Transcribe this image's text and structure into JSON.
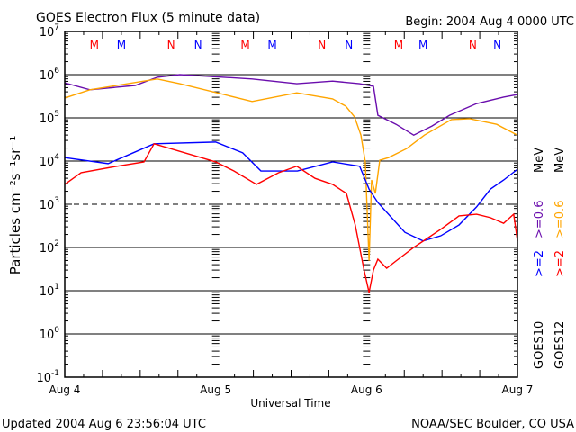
{
  "chart_data": {
    "type": "line",
    "title": "GOES Electron Flux (5 minute data)",
    "begin_label": "Begin: 2004 Aug 4 0000 UTC",
    "xlabel": "Universal Time",
    "ylabel": "Particles cm⁻²s⁻¹sr⁻¹",
    "x_unit": "hours since 2004 Aug 4 0000 UTC",
    "xlim": [
      0,
      72
    ],
    "x_ticks": [
      {
        "value": 0,
        "label": "Aug 4"
      },
      {
        "value": 24,
        "label": "Aug 5"
      },
      {
        "value": 48,
        "label": "Aug 6"
      },
      {
        "value": 72,
        "label": "Aug 7"
      }
    ],
    "y_scale": "log",
    "ylim_log10": [
      -1,
      7
    ],
    "y_ticks_log10": [
      7,
      6,
      5,
      4,
      3,
      2,
      1,
      0,
      -1
    ],
    "threshold_log10": 3,
    "series": [
      {
        "name": "GOES10 >=0.6 MeV",
        "color": "#6a0dad",
        "points_log10": [
          [
            0,
            5.81
          ],
          [
            4,
            5.65
          ],
          [
            11.2,
            5.75
          ],
          [
            14.7,
            5.94
          ],
          [
            18.3,
            6.0
          ],
          [
            29.8,
            5.9
          ],
          [
            36.9,
            5.79
          ],
          [
            42.6,
            5.85
          ],
          [
            46.9,
            5.79
          ],
          [
            49.1,
            5.73
          ],
          [
            49.8,
            5.06
          ],
          [
            52.7,
            4.85
          ],
          [
            55.5,
            4.6
          ],
          [
            58.4,
            4.81
          ],
          [
            61.2,
            5.06
          ],
          [
            65.5,
            5.33
          ],
          [
            69.8,
            5.48
          ],
          [
            72,
            5.54
          ]
        ]
      },
      {
        "name": "GOES12 >=0.6 MeV",
        "color": "#ffa500",
        "points_log10": [
          [
            0,
            5.46
          ],
          [
            4,
            5.65
          ],
          [
            14.7,
            5.9
          ],
          [
            18.3,
            5.79
          ],
          [
            29.8,
            5.38
          ],
          [
            36.9,
            5.58
          ],
          [
            42.6,
            5.44
          ],
          [
            44.7,
            5.27
          ],
          [
            46.1,
            5.02
          ],
          [
            47.1,
            4.6
          ],
          [
            47.8,
            3.98
          ],
          [
            48.4,
            1.69
          ],
          [
            48.8,
            3.56
          ],
          [
            49.4,
            3.25
          ],
          [
            50.1,
            4.02
          ],
          [
            51.5,
            4.08
          ],
          [
            54.4,
            4.29
          ],
          [
            57.2,
            4.6
          ],
          [
            61.5,
            4.96
          ],
          [
            64.4,
            4.98
          ],
          [
            68.7,
            4.85
          ],
          [
            72,
            4.6
          ]
        ]
      },
      {
        "name": "GOES10 >=2 MeV",
        "color": "#0000ff",
        "points_log10": [
          [
            0,
            4.08
          ],
          [
            6.9,
            3.94
          ],
          [
            14.2,
            4.4
          ],
          [
            24,
            4.44
          ],
          [
            28.3,
            4.19
          ],
          [
            31.2,
            3.77
          ],
          [
            37,
            3.77
          ],
          [
            42.6,
            3.98
          ],
          [
            46.9,
            3.88
          ],
          [
            48.4,
            3.35
          ],
          [
            49.8,
            3.04
          ],
          [
            54.1,
            2.35
          ],
          [
            57,
            2.15
          ],
          [
            59.8,
            2.27
          ],
          [
            62.7,
            2.52
          ],
          [
            65.5,
            2.94
          ],
          [
            67.7,
            3.35
          ],
          [
            69.8,
            3.56
          ],
          [
            72,
            3.81
          ]
        ]
      },
      {
        "name": "GOES12 >=2 MeV",
        "color": "#ff0000",
        "points_log10": [
          [
            0,
            3.46
          ],
          [
            2.6,
            3.73
          ],
          [
            8.3,
            3.88
          ],
          [
            12.6,
            3.98
          ],
          [
            14.2,
            4.4
          ],
          [
            24,
            3.98
          ],
          [
            26.9,
            3.77
          ],
          [
            30.5,
            3.46
          ],
          [
            34,
            3.73
          ],
          [
            36.9,
            3.88
          ],
          [
            39.8,
            3.6
          ],
          [
            42.6,
            3.46
          ],
          [
            44.8,
            3.25
          ],
          [
            46.2,
            2.52
          ],
          [
            47.6,
            1.48
          ],
          [
            48.4,
            0.96
          ],
          [
            49.1,
            1.48
          ],
          [
            49.8,
            1.73
          ],
          [
            51.2,
            1.52
          ],
          [
            52.7,
            1.69
          ],
          [
            55.5,
            2.0
          ],
          [
            59.8,
            2.42
          ],
          [
            62.7,
            2.73
          ],
          [
            65.5,
            2.77
          ],
          [
            67.7,
            2.69
          ],
          [
            69.8,
            2.56
          ],
          [
            71.4,
            2.77
          ],
          [
            72,
            2.15
          ]
        ]
      }
    ],
    "markers": [
      {
        "label": "M",
        "hour": 4.7,
        "color": "#ff0000"
      },
      {
        "label": "M",
        "hour": 9.0,
        "color": "#0000ff"
      },
      {
        "label": "N",
        "hour": 16.9,
        "color": "#ff0000"
      },
      {
        "label": "N",
        "hour": 21.2,
        "color": "#0000ff"
      },
      {
        "label": "M",
        "hour": 28.7,
        "color": "#ff0000"
      },
      {
        "label": "M",
        "hour": 33.0,
        "color": "#0000ff"
      },
      {
        "label": "N",
        "hour": 40.9,
        "color": "#ff0000"
      },
      {
        "label": "N",
        "hour": 45.2,
        "color": "#0000ff"
      },
      {
        "label": "M",
        "hour": 53.1,
        "color": "#ff0000"
      },
      {
        "label": "M",
        "hour": 57.0,
        "color": "#0000ff"
      },
      {
        "label": "N",
        "hour": 64.9,
        "color": "#ff0000"
      },
      {
        "label": "N",
        "hour": 68.8,
        "color": "#0000ff"
      }
    ],
    "legend": {
      "goes10": {
        "sat": "GOES10",
        "low": ">=2",
        "high": ">=0.6",
        "unit": "MeV"
      },
      "goes12": {
        "sat": "GOES12",
        "low": ">=2",
        "high": ">=0.6",
        "unit": "MeV"
      }
    }
  },
  "footer": {
    "updated": "Updated 2004 Aug  6 23:56:04 UTC",
    "credit": "NOAA/SEC Boulder, CO USA"
  }
}
